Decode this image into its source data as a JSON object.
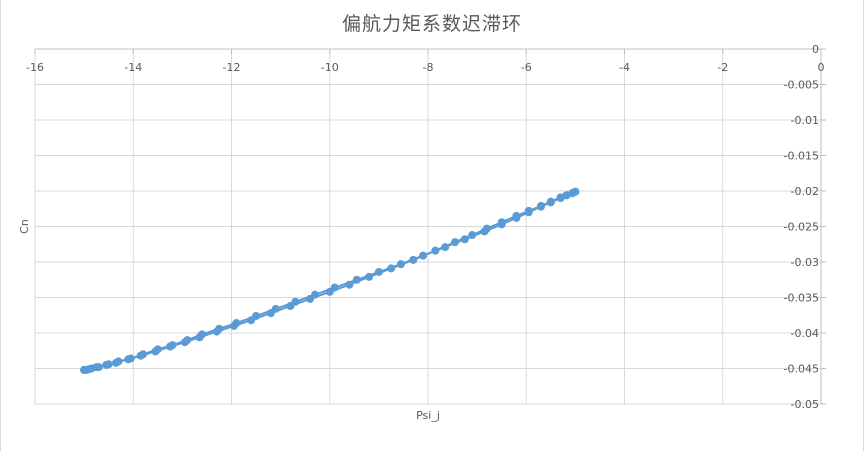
{
  "chart_data": {
    "type": "scatter",
    "title": "偏航力矩系数迟滞环",
    "xlabel": "Psi_j",
    "ylabel": "Cn",
    "xlim": [
      -16,
      0
    ],
    "ylim": [
      -0.05,
      0
    ],
    "x_axis_position": "top",
    "y_axis_position": "right",
    "x_ticks": [
      -16,
      -14,
      -12,
      -10,
      -8,
      -6,
      -4,
      -2,
      0
    ],
    "y_ticks": [
      0,
      -0.005,
      -0.01,
      -0.015,
      -0.02,
      -0.025,
      -0.03,
      -0.035,
      -0.04,
      -0.045,
      -0.05
    ],
    "x_tick_labels": [
      "-16",
      "-14",
      "-12",
      "-10",
      "-8",
      "-6",
      "-4",
      "-2",
      "0"
    ],
    "y_tick_labels": [
      "0",
      "-0.005",
      "-0.01",
      "-0.015",
      "-0.02",
      "-0.025",
      "-0.03",
      "-0.035",
      "-0.04",
      "-0.045",
      "-0.05"
    ],
    "grid": true,
    "legend": "none",
    "marker_color": "#5b9bd5",
    "line_color": "#5b9bd5",
    "series": [
      {
        "x": [
          -5.0,
          -5.06,
          -5.18,
          -5.3,
          -5.5,
          -5.7,
          -5.95,
          -6.2,
          -6.5,
          -6.8,
          -7.1,
          -7.45,
          -7.85,
          -8.3,
          -8.75,
          -9.2,
          -9.6,
          -10.0,
          -10.4,
          -10.8,
          -11.2,
          -11.6,
          -11.95,
          -12.3,
          -12.65,
          -12.95,
          -13.25,
          -13.55,
          -13.85,
          -14.05,
          -14.3,
          -14.5,
          -14.7,
          -14.85,
          -14.95,
          -15.0
        ],
        "y": [
          -0.0201,
          -0.0203,
          -0.0206,
          -0.0209,
          -0.0215,
          -0.0221,
          -0.0228,
          -0.0235,
          -0.0244,
          -0.0253,
          -0.0262,
          -0.0272,
          -0.0284,
          -0.0297,
          -0.0309,
          -0.0321,
          -0.0332,
          -0.0342,
          -0.0352,
          -0.0362,
          -0.0372,
          -0.0382,
          -0.039,
          -0.0398,
          -0.0406,
          -0.0413,
          -0.0419,
          -0.0426,
          -0.0432,
          -0.0436,
          -0.044,
          -0.0444,
          -0.0448,
          -0.045,
          -0.0452,
          -0.0452
        ]
      },
      {
        "x": [
          -15.0,
          -14.9,
          -14.75,
          -14.55,
          -14.35,
          -14.1,
          -13.8,
          -13.5,
          -13.2,
          -12.9,
          -12.6,
          -12.25,
          -11.9,
          -11.5,
          -11.1,
          -10.7,
          -10.3,
          -9.9,
          -9.45,
          -9.0,
          -8.55,
          -8.1,
          -7.65,
          -7.25,
          -6.85,
          -6.5,
          -6.2,
          -5.95,
          -5.7,
          -5.5,
          -5.3,
          -5.18,
          -5.06,
          -5.0
        ],
        "y": [
          -0.0452,
          -0.0451,
          -0.0448,
          -0.0445,
          -0.0442,
          -0.0437,
          -0.043,
          -0.0423,
          -0.0417,
          -0.041,
          -0.0402,
          -0.0394,
          -0.0386,
          -0.0376,
          -0.0366,
          -0.0356,
          -0.0346,
          -0.0336,
          -0.0325,
          -0.0314,
          -0.0303,
          -0.0291,
          -0.0279,
          -0.0268,
          -0.0257,
          -0.0247,
          -0.0238,
          -0.023,
          -0.0222,
          -0.0216,
          -0.021,
          -0.0206,
          -0.0203,
          -0.0201
        ]
      }
    ]
  }
}
